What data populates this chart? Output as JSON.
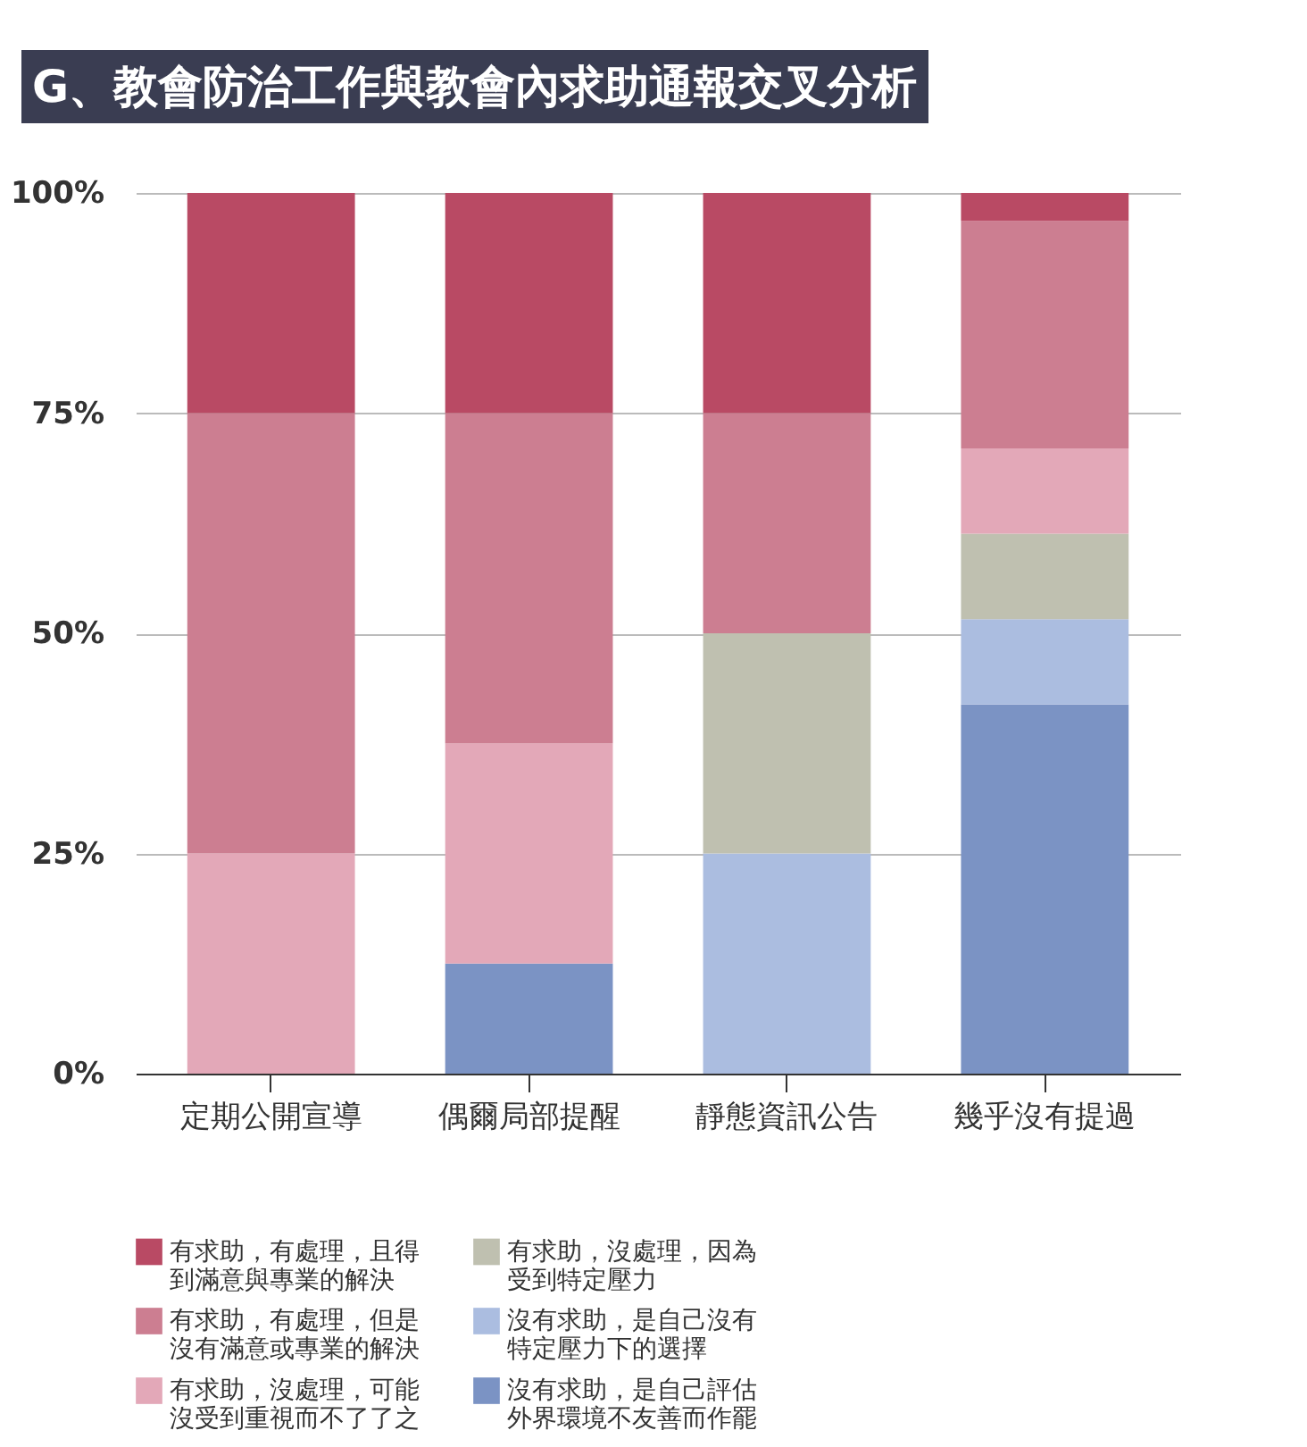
{
  "chart_data": {
    "type": "bar",
    "title": "G、教會防治工作與教會內求助通報交叉分析",
    "stacked": true,
    "categories": [
      "定期公開宣導",
      "偶爾局部提醒",
      "靜態資訊公告",
      "幾乎沒有提過"
    ],
    "series": [
      {
        "name": "沒有求助，是自己評估外界環境不友善而作罷",
        "color": "#7b93c4",
        "values": [
          0,
          12.5,
          0,
          41.9
        ]
      },
      {
        "name": "沒有求助，是自己沒有特定壓力下的選擇",
        "color": "#abbde0",
        "values": [
          0,
          0,
          25,
          9.7
        ]
      },
      {
        "name": "有求助，沒處理，因為受到特定壓力",
        "color": "#bfc0b0",
        "values": [
          0,
          0,
          25,
          9.7
        ]
      },
      {
        "name": "有求助，沒處理，可能沒受到重視而不了了之",
        "color": "#e3a8b8",
        "values": [
          25,
          25,
          0,
          9.7
        ]
      },
      {
        "name": "有求助，有處理，但是沒有滿意或專業的解決",
        "color": "#cc7e91",
        "values": [
          50,
          37.5,
          25,
          25.8
        ]
      },
      {
        "name": "有求助，有處理，且得到滿意與專業的解決",
        "color": "#b94a64",
        "values": [
          25,
          25,
          25,
          3.2
        ]
      }
    ],
    "ylim": [
      0,
      100
    ],
    "yticks": [
      {
        "value": 0,
        "label": "0%"
      },
      {
        "value": 25,
        "label": "25%"
      },
      {
        "value": 50,
        "label": "50%"
      },
      {
        "value": 75,
        "label": "75%"
      },
      {
        "value": 100,
        "label": "100%"
      }
    ],
    "grid": "y",
    "legend": "bottom"
  }
}
